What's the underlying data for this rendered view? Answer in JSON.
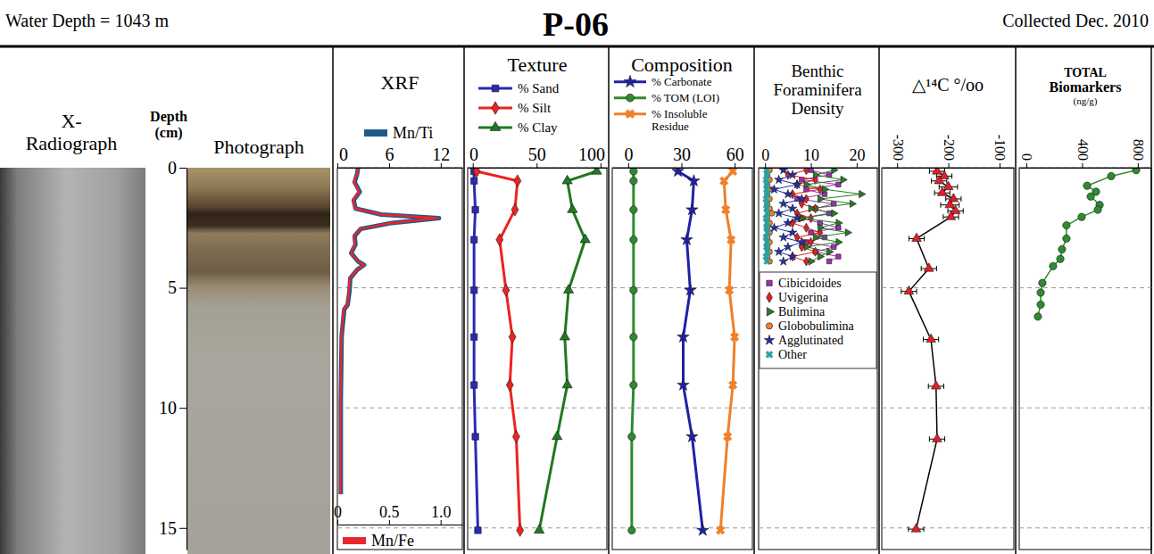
{
  "figure": {
    "water_depth": "Water Depth = 1043 m",
    "title": "P-06",
    "collected": "Collected Dec. 2010"
  },
  "chart_data": [
    {
      "type": "core_images",
      "titles": [
        [
          "X-",
          "Radiograph"
        ],
        [
          "Photograph"
        ]
      ],
      "ylabel": [
        "Depth",
        "(cm)"
      ],
      "ylim": [
        0,
        15.9
      ],
      "yticks": [
        0,
        5,
        10,
        15
      ]
    },
    {
      "type": "line",
      "title": "XRF",
      "xlim": [
        0,
        14.5
      ],
      "xticks": [
        0,
        6,
        12
      ],
      "x2lim": [
        0,
        1.21
      ],
      "x2ticks": [
        0,
        0.5,
        {
          "value": 1,
          "label": "1.0"
        }
      ],
      "ylim": [
        0,
        15.9
      ],
      "yticks": [
        0,
        5,
        10,
        15
      ],
      "grid": true,
      "tick_labels": "x",
      "legend": "top",
      "series": [
        {
          "name": "Mn/Ti",
          "color": "#1e5b8c",
          "marker": "none",
          "line_style": "solid",
          "x": [
            2.4,
            2.3,
            2.0,
            2.6,
            1.9,
            2.1,
            5.1,
            11.8,
            6.3,
            2.7,
            2.0,
            2.1,
            1.6,
            2.4,
            3.1,
            2.3,
            1.5,
            1.4,
            1.2,
            0.8,
            0.5,
            0.4,
            0.4,
            0.4
          ],
          "y": [
            0,
            0.25,
            0.6,
            1.0,
            1.35,
            1.7,
            1.95,
            2.1,
            2.3,
            2.55,
            2.85,
            3.2,
            3.55,
            3.9,
            4.05,
            4.25,
            4.6,
            5.15,
            5.7,
            5.9,
            7.0,
            9.6,
            12.1,
            13.6
          ]
        },
        {
          "name": "Mn/Fe",
          "color": "#e8262c",
          "axis": "x2",
          "marker": "none",
          "line_style": "solid",
          "x": [
            0.2,
            0.19,
            0.16,
            0.21,
            0.15,
            0.17,
            0.43,
            0.97,
            0.52,
            0.22,
            0.16,
            0.17,
            0.13,
            0.2,
            0.26,
            0.19,
            0.12,
            0.11,
            0.1,
            0.06,
            0.04,
            0.03,
            0.03,
            0.03
          ],
          "y": [
            0,
            0.25,
            0.6,
            1.0,
            1.35,
            1.7,
            1.95,
            2.1,
            2.3,
            2.55,
            2.85,
            3.2,
            3.55,
            3.9,
            4.05,
            4.25,
            4.6,
            5.15,
            5.7,
            5.9,
            7.0,
            9.6,
            12.1,
            13.6
          ]
        }
      ]
    },
    {
      "type": "line",
      "title": "Texture",
      "xlim": [
        -4,
        105
      ],
      "xticks": [
        0,
        50,
        100
      ],
      "ylim": [
        0,
        15.9
      ],
      "yticks": [
        0,
        5,
        10,
        15
      ],
      "grid": true,
      "tick_labels": "x",
      "legend": "top",
      "series": [
        {
          "name": "% Sand",
          "color": "#2a2ab5",
          "marker": "square",
          "line_style": "solid",
          "x": [
            1,
            1,
            2,
            1,
            1,
            1,
            1,
            2,
            4
          ],
          "y": [
            0.15,
            0.55,
            1.75,
            3.0,
            5.1,
            7.05,
            9.05,
            11.2,
            15.1
          ]
        },
        {
          "name": "% Silt",
          "color": "#ee2222",
          "marker": "diamond",
          "line_style": "solid",
          "x": [
            3,
            35,
            33,
            21,
            26,
            31,
            29,
            34,
            37
          ],
          "y": [
            0.15,
            0.55,
            1.75,
            3.0,
            5.1,
            7.05,
            9.05,
            11.2,
            15.1
          ]
        },
        {
          "name": "% Clay",
          "color": "#1f7a1f",
          "marker": "triangle",
          "line_style": "solid",
          "x": [
            97,
            74,
            78,
            88,
            75,
            72,
            74,
            66,
            52
          ],
          "y": [
            0.15,
            0.55,
            1.75,
            3.0,
            5.1,
            7.05,
            9.05,
            11.2,
            15.1
          ]
        }
      ]
    },
    {
      "type": "line",
      "title": "Composition",
      "xlim": [
        -9,
        70
      ],
      "xticks": [
        0,
        30,
        60
      ],
      "ylim": [
        0,
        15.9
      ],
      "yticks": [
        0,
        5,
        10,
        15
      ],
      "grid": true,
      "tick_labels": "x",
      "legend": "top",
      "series": [
        {
          "name": "% Carbonate",
          "color": "#2020a8",
          "marker": "star",
          "line_style": "solid",
          "x": [
            28,
            37,
            36,
            33,
            35,
            31,
            31,
            36,
            42
          ],
          "y": [
            0.15,
            0.55,
            1.75,
            3.0,
            5.1,
            7.05,
            9.05,
            11.2,
            15.1
          ]
        },
        {
          "name": "% TOM (LOI)",
          "color": "#2e8b2e",
          "marker": "circle",
          "line_style": "solid",
          "x": [
            3,
            3,
            3,
            3,
            3,
            3,
            3,
            2,
            2
          ],
          "y": [
            0.15,
            0.55,
            1.75,
            3.0,
            5.1,
            7.05,
            9.05,
            11.2,
            15.1
          ]
        },
        {
          "name": "% Insoluble Residue",
          "color": "#f07f2a",
          "marker": "x",
          "line_style": "solid",
          "x": [
            59,
            54,
            55,
            58,
            57,
            60,
            59,
            56,
            52
          ],
          "y": [
            0.15,
            0.55,
            1.75,
            3.0,
            5.1,
            7.05,
            9.05,
            11.2,
            15.1
          ]
        }
      ]
    },
    {
      "type": "line",
      "title": [
        "Benthic",
        "Foraminifera",
        "Density"
      ],
      "xlim": [
        -1.4,
        24.5
      ],
      "xticks": [
        0,
        10,
        20
      ],
      "ylim": [
        0,
        15.9
      ],
      "yticks": [
        0,
        5,
        10,
        15
      ],
      "grid": true,
      "tick_labels": "x",
      "legend": "inside",
      "series": [
        {
          "name": "Cibicidoides",
          "color": "#9b30b0",
          "marker": "square",
          "line_style": "solid",
          "x": [
            10,
            14,
            8,
            16,
            9,
            13,
            7,
            15,
            11,
            14,
            8,
            12,
            16,
            10,
            13,
            9,
            15,
            11,
            16,
            14
          ],
          "y": [
            0.1,
            0.3,
            0.5,
            0.7,
            0.9,
            1.1,
            1.3,
            1.5,
            1.7,
            1.9,
            2.1,
            2.3,
            2.5,
            2.7,
            2.9,
            3.1,
            3.3,
            3.5,
            3.7,
            3.9
          ]
        },
        {
          "name": "Uvigerina",
          "color": "#e02020",
          "marker": "diamond",
          "line_style": "solid",
          "x": [
            9,
            5,
            11,
            7,
            12,
            6,
            9,
            8,
            11,
            7,
            10,
            6,
            9,
            12,
            7,
            10,
            8,
            11,
            6,
            9
          ],
          "y": [
            0.1,
            0.3,
            0.5,
            0.7,
            0.9,
            1.1,
            1.3,
            1.5,
            1.7,
            1.9,
            2.1,
            2.3,
            2.5,
            2.7,
            2.9,
            3.1,
            3.3,
            3.5,
            3.7,
            3.9
          ]
        },
        {
          "name": "Bulimina",
          "color": "#2a7a2a",
          "marker": "triangle-right",
          "line_style": "solid",
          "x": [
            15,
            11,
            17,
            9,
            13,
            21,
            12,
            19,
            10,
            15,
            8,
            16,
            12,
            18,
            11,
            16,
            9,
            14,
            12,
            10
          ],
          "y": [
            0.1,
            0.3,
            0.5,
            0.7,
            0.9,
            1.1,
            1.3,
            1.5,
            1.7,
            1.9,
            2.1,
            2.3,
            2.5,
            2.7,
            2.9,
            3.1,
            3.3,
            3.5,
            3.7,
            3.9
          ]
        },
        {
          "name": "Globobulimina",
          "color": "#f08030",
          "marker": "circle",
          "line_style": "solid",
          "x": [
            1,
            0.5,
            1,
            0.5,
            1.5,
            0.5,
            1,
            0.5,
            1,
            1.5,
            0.5,
            1,
            0.5,
            1,
            0.5,
            1,
            0.5,
            1,
            0.5,
            1
          ],
          "y": [
            0.1,
            0.3,
            0.5,
            0.7,
            0.9,
            1.1,
            1.3,
            1.5,
            1.7,
            1.9,
            2.1,
            2.3,
            2.5,
            2.7,
            2.9,
            3.1,
            3.3,
            3.5,
            3.7,
            3.9
          ]
        },
        {
          "name": "Agglutinated",
          "color": "#2030b0",
          "marker": "star",
          "line_style": "solid",
          "x": [
            4,
            6,
            3,
            7,
            2,
            5,
            8,
            4,
            6,
            3,
            7,
            5,
            2,
            6,
            4,
            8,
            5,
            3,
            6,
            4
          ],
          "y": [
            0.1,
            0.3,
            0.5,
            0.7,
            0.9,
            1.1,
            1.3,
            1.5,
            1.7,
            1.9,
            2.1,
            2.3,
            2.5,
            2.7,
            2.9,
            3.1,
            3.3,
            3.5,
            3.7,
            3.9
          ]
        },
        {
          "name": "Other",
          "color": "#2aa0a0",
          "marker": "x",
          "line_style": "solid",
          "x": [
            0.3,
            0.5,
            0.2,
            0.4,
            0.3,
            0.5,
            0.2,
            0.4,
            0.3,
            0.5,
            0.2,
            0.4,
            0.3,
            0.5,
            0.2,
            0.4,
            0.3,
            0.5,
            0.2,
            0.4
          ],
          "y": [
            0.1,
            0.3,
            0.5,
            0.7,
            0.9,
            1.1,
            1.3,
            1.5,
            1.7,
            1.9,
            2.1,
            2.3,
            2.5,
            2.7,
            2.9,
            3.1,
            3.3,
            3.5,
            3.7,
            3.9
          ]
        }
      ]
    },
    {
      "type": "line",
      "title": "△¹⁴C °/oo",
      "xlim": [
        -330,
        -72
      ],
      "xticks": [
        -300,
        -200,
        -100
      ],
      "ylim": [
        0,
        15.9
      ],
      "yticks": [
        0,
        5,
        10,
        15
      ],
      "grid": true,
      "tick_labels": "x",
      "series": [
        {
          "color": "#e41e26",
          "marker": "triangle",
          "line_style": "solid",
          "x": [
            -222,
            -208,
            -218,
            -200,
            -212,
            -190,
            -197,
            -186,
            -195,
            -262,
            -238,
            -277,
            -234,
            -224,
            -222,
            -263
          ],
          "xerr": [
            15,
            15,
            15,
            18,
            15,
            15,
            18,
            15,
            15,
            15,
            15,
            15,
            15,
            15,
            15,
            15
          ],
          "y": [
            0.15,
            0.35,
            0.55,
            0.8,
            1.05,
            1.3,
            1.55,
            1.8,
            2.05,
            2.95,
            4.2,
            5.15,
            7.15,
            9.1,
            11.3,
            15.05
          ]
        }
      ]
    },
    {
      "type": "line",
      "title": [
        "TOTAL",
        "Biomarkers",
        "(ng/g)"
      ],
      "xlim": [
        -51,
        897
      ],
      "xticks": [
        0,
        400,
        800
      ],
      "ylim": [
        0,
        15.9
      ],
      "yticks": [
        0,
        5,
        10,
        15
      ],
      "grid": true,
      "tick_labels": "x",
      "series": [
        {
          "color": "#2e8b2e",
          "marker": "circle",
          "line_style": "solid",
          "x": [
            788,
            609,
            436,
            500,
            462,
            526,
            513,
            397,
            288,
            288,
            256,
            244,
            192,
            115,
            103,
            103,
            83
          ],
          "y": [
            0.1,
            0.35,
            0.75,
            1.0,
            1.2,
            1.55,
            1.75,
            2.05,
            2.4,
            2.95,
            3.4,
            3.8,
            4.1,
            4.8,
            5.2,
            5.7,
            6.2
          ]
        }
      ]
    }
  ]
}
